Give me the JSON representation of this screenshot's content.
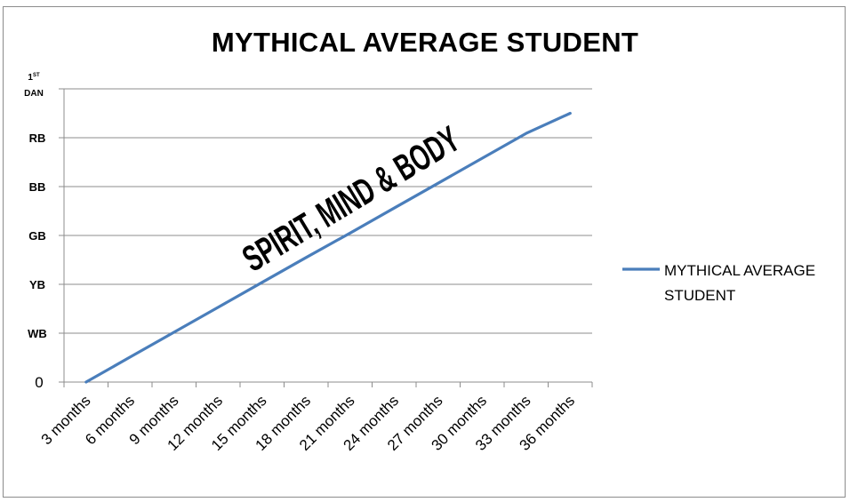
{
  "chart_data": {
    "type": "line",
    "title": "MYTHICAL AVERAGE STUDENT",
    "xlabel": "",
    "ylabel": "",
    "categories": [
      "3 months",
      "6 months",
      "9 months",
      "12 months",
      "15 months",
      "18 months",
      "21 months",
      "24 months",
      "27 months",
      "30 months",
      "33 months",
      "36 months"
    ],
    "y_ticks": [
      {
        "label": "0",
        "value": 0
      },
      {
        "label": "WB",
        "value": 1
      },
      {
        "label": "YB",
        "value": 2
      },
      {
        "label": "GB",
        "value": 3
      },
      {
        "label": "BB",
        "value": 4
      },
      {
        "label": "RB",
        "value": 5
      },
      {
        "label": "1ST DAN",
        "value": 6
      }
    ],
    "ylim": [
      0,
      6
    ],
    "series": [
      {
        "name": "MYTHICAL AVERAGE STUDENT",
        "color": "#4a7ebb",
        "values": [
          0,
          0.51,
          1.02,
          1.53,
          2.04,
          2.55,
          3.05,
          3.56,
          4.07,
          4.58,
          5.09,
          5.5
        ]
      }
    ],
    "annotation": "SPIRIT, MIND & BODY",
    "grid": true,
    "legend_position": "right"
  }
}
